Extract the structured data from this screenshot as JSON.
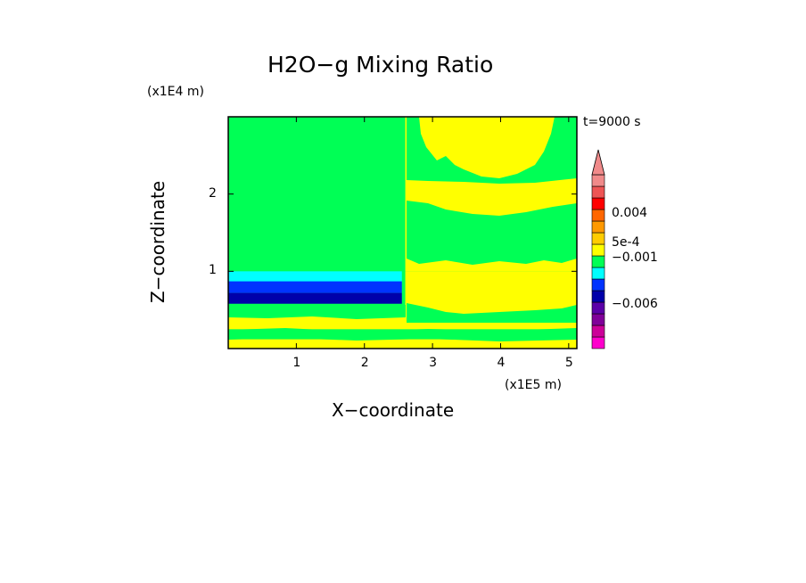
{
  "chart_data": {
    "type": "heatmap",
    "title": "H2O−g Mixing Ratio",
    "xlabel": "X−coordinate",
    "ylabel": "Z−coordinate",
    "x_units": "(x1E5 m)",
    "y_units": "(x1E4 m)",
    "time_label": "t=9000 s",
    "x_ticks": [
      "1",
      "2",
      "3",
      "4",
      "5"
    ],
    "y_ticks": [
      "1",
      "2"
    ],
    "xlim": [
      0,
      5.12
    ],
    "ylim": [
      0,
      3.0
    ],
    "colorbar": {
      "tick_labels": [
        "0.004",
        "5e-4",
        "−0.001",
        "−0.006"
      ],
      "colors": [
        "#ff00cc",
        "#cc0099",
        "#800099",
        "#5b00a8",
        "#0000aa",
        "#0033ff",
        "#00ffff",
        "#00ff55",
        "#ffff00",
        "#ffcc00",
        "#ff9900",
        "#ff6600",
        "#ff0000",
        "#ee5555",
        "#f08a8a"
      ]
    },
    "regions": [
      {
        "name": "background",
        "x": [
          0,
          5.12
        ],
        "y": [
          0,
          3.0
        ],
        "color": "#00ff55"
      },
      {
        "name": "east-upper-mixed",
        "x": [
          2.6,
          5.12
        ],
        "y": [
          1.0,
          3.0
        ],
        "color": "#ffff00"
      },
      {
        "name": "east-lower-moist",
        "x": [
          2.6,
          5.12
        ],
        "y": [
          0.4,
          1.0
        ],
        "color": "#ffff00"
      },
      {
        "name": "west-cyan-layer",
        "x": [
          0,
          2.55
        ],
        "y": [
          0.85,
          1.0
        ],
        "color": "#00ffff"
      },
      {
        "name": "west-blue-layer",
        "x": [
          0,
          2.55
        ],
        "y": [
          0.72,
          0.87
        ],
        "color": "#0033ff"
      },
      {
        "name": "west-darkblue-layer",
        "x": [
          0,
          2.55
        ],
        "y": [
          0.58,
          0.72
        ],
        "color": "#0000aa"
      },
      {
        "name": "near-surface-band",
        "x": [
          0,
          5.12
        ],
        "y": [
          0.25,
          0.45
        ],
        "color": "#ffff00"
      },
      {
        "name": "surface-band",
        "x": [
          0,
          5.12
        ],
        "y": [
          0.0,
          0.12
        ],
        "color": "#ffff00"
      }
    ]
  }
}
